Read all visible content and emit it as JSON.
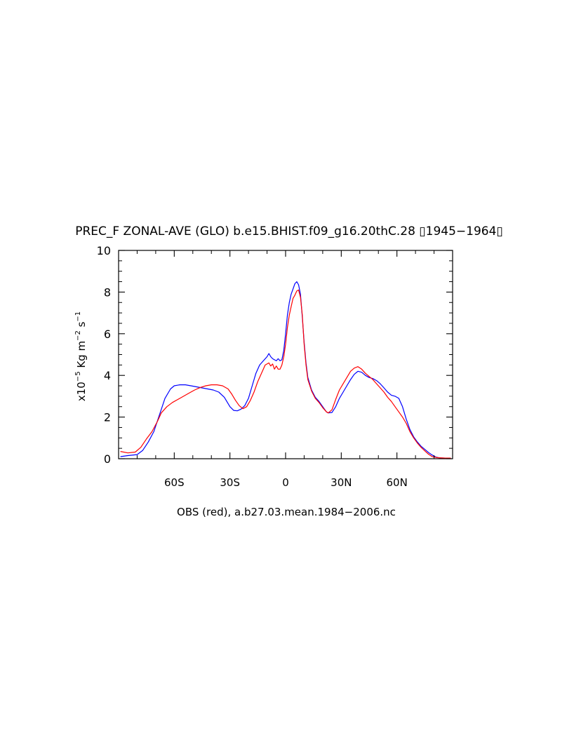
{
  "chart_data": {
    "type": "line",
    "title": "PREC_F ZONAL-AVE (GLO) b.e15.BHIST.f09_g16.20thC.28 ▯1945−1964▯",
    "xlabel": "OBS (red), a.b27.03.mean.1984−2006.nc",
    "ylabel": {
      "prefix": "x10",
      "exp1": "−5",
      "mid": " Kg m",
      "exp2": "−2",
      "mid2": " s",
      "exp3": "−1"
    },
    "xlim": [
      -90,
      90
    ],
    "ylim": [
      0,
      10
    ],
    "x_ticks": [
      {
        "value": -60,
        "label": "60S"
      },
      {
        "value": -30,
        "label": "30S"
      },
      {
        "value": 0,
        "label": "0"
      },
      {
        "value": 30,
        "label": "30N"
      },
      {
        "value": 60,
        "label": "60N"
      }
    ],
    "y_ticks": [
      {
        "value": 0,
        "label": "0"
      },
      {
        "value": 2,
        "label": "2"
      },
      {
        "value": 4,
        "label": "4"
      },
      {
        "value": 6,
        "label": "6"
      },
      {
        "value": 8,
        "label": "8"
      },
      {
        "value": 10,
        "label": "10"
      }
    ],
    "grid": false,
    "series": [
      {
        "color": "#0000ff",
        "points": [
          [
            -89,
            0.1
          ],
          [
            -85,
            0.15
          ],
          [
            -80,
            0.2
          ],
          [
            -77,
            0.4
          ],
          [
            -74,
            0.8
          ],
          [
            -71,
            1.3
          ],
          [
            -68,
            2.1
          ],
          [
            -65,
            2.9
          ],
          [
            -62,
            3.35
          ],
          [
            -60,
            3.5
          ],
          [
            -57,
            3.55
          ],
          [
            -54,
            3.55
          ],
          [
            -51,
            3.5
          ],
          [
            -48,
            3.45
          ],
          [
            -45,
            3.4
          ],
          [
            -42,
            3.35
          ],
          [
            -39,
            3.3
          ],
          [
            -36,
            3.2
          ],
          [
            -33,
            2.95
          ],
          [
            -30,
            2.5
          ],
          [
            -28,
            2.32
          ],
          [
            -26,
            2.3
          ],
          [
            -24,
            2.38
          ],
          [
            -22,
            2.55
          ],
          [
            -20,
            2.9
          ],
          [
            -18,
            3.5
          ],
          [
            -16,
            4.1
          ],
          [
            -14,
            4.5
          ],
          [
            -12,
            4.7
          ],
          [
            -10,
            4.9
          ],
          [
            -9,
            5.05
          ],
          [
            -8,
            4.9
          ],
          [
            -7,
            4.8
          ],
          [
            -6,
            4.75
          ],
          [
            -5,
            4.7
          ],
          [
            -4,
            4.8
          ],
          [
            -3,
            4.7
          ],
          [
            -2,
            4.75
          ],
          [
            -1,
            5.2
          ],
          [
            0,
            6.0
          ],
          [
            1,
            6.9
          ],
          [
            2,
            7.5
          ],
          [
            3,
            7.9
          ],
          [
            4,
            8.15
          ],
          [
            5,
            8.4
          ],
          [
            6,
            8.5
          ],
          [
            7,
            8.35
          ],
          [
            8,
            7.9
          ],
          [
            9,
            6.8
          ],
          [
            10,
            5.6
          ],
          [
            11,
            4.6
          ],
          [
            12,
            3.9
          ],
          [
            14,
            3.3
          ],
          [
            16,
            2.95
          ],
          [
            18,
            2.75
          ],
          [
            20,
            2.5
          ],
          [
            22,
            2.25
          ],
          [
            23,
            2.2
          ],
          [
            25,
            2.22
          ],
          [
            27,
            2.5
          ],
          [
            29,
            2.9
          ],
          [
            31,
            3.2
          ],
          [
            33,
            3.5
          ],
          [
            35,
            3.8
          ],
          [
            37,
            4.05
          ],
          [
            39,
            4.2
          ],
          [
            41,
            4.15
          ],
          [
            43,
            4.0
          ],
          [
            45,
            3.9
          ],
          [
            47,
            3.85
          ],
          [
            49,
            3.75
          ],
          [
            51,
            3.6
          ],
          [
            53,
            3.4
          ],
          [
            55,
            3.2
          ],
          [
            57,
            3.05
          ],
          [
            59,
            3.0
          ],
          [
            61,
            2.9
          ],
          [
            63,
            2.5
          ],
          [
            65,
            1.9
          ],
          [
            67,
            1.4
          ],
          [
            69,
            1.05
          ],
          [
            71,
            0.8
          ],
          [
            73,
            0.6
          ],
          [
            75,
            0.45
          ],
          [
            77,
            0.3
          ],
          [
            79,
            0.18
          ],
          [
            81,
            0.08
          ],
          [
            83,
            0.04
          ],
          [
            86,
            0.03
          ],
          [
            89,
            0.03
          ]
        ]
      },
      {
        "color": "#ff0000",
        "points": [
          [
            -89,
            0.35
          ],
          [
            -85,
            0.28
          ],
          [
            -81,
            0.32
          ],
          [
            -78,
            0.55
          ],
          [
            -75,
            0.95
          ],
          [
            -72,
            1.3
          ],
          [
            -69,
            1.8
          ],
          [
            -67,
            2.2
          ],
          [
            -64,
            2.5
          ],
          [
            -61,
            2.7
          ],
          [
            -58,
            2.85
          ],
          [
            -55,
            3.0
          ],
          [
            -52,
            3.15
          ],
          [
            -49,
            3.3
          ],
          [
            -46,
            3.42
          ],
          [
            -43,
            3.5
          ],
          [
            -40,
            3.55
          ],
          [
            -37,
            3.55
          ],
          [
            -34,
            3.5
          ],
          [
            -31,
            3.35
          ],
          [
            -29,
            3.1
          ],
          [
            -27,
            2.8
          ],
          [
            -25,
            2.55
          ],
          [
            -23,
            2.4
          ],
          [
            -21,
            2.5
          ],
          [
            -19,
            2.8
          ],
          [
            -17,
            3.2
          ],
          [
            -15,
            3.7
          ],
          [
            -13,
            4.1
          ],
          [
            -11,
            4.5
          ],
          [
            -9,
            4.6
          ],
          [
            -8,
            4.45
          ],
          [
            -7,
            4.55
          ],
          [
            -6,
            4.3
          ],
          [
            -5,
            4.45
          ],
          [
            -4,
            4.3
          ],
          [
            -3,
            4.3
          ],
          [
            -2,
            4.5
          ],
          [
            -1,
            4.9
          ],
          [
            0,
            5.5
          ],
          [
            1,
            6.3
          ],
          [
            2,
            6.9
          ],
          [
            3,
            7.3
          ],
          [
            4,
            7.7
          ],
          [
            5,
            7.85
          ],
          [
            6,
            8.05
          ],
          [
            7,
            8.1
          ],
          [
            8,
            7.75
          ],
          [
            9,
            6.9
          ],
          [
            10,
            5.5
          ],
          [
            11,
            4.5
          ],
          [
            12,
            3.8
          ],
          [
            14,
            3.25
          ],
          [
            16,
            2.9
          ],
          [
            18,
            2.7
          ],
          [
            20,
            2.45
          ],
          [
            22,
            2.25
          ],
          [
            23,
            2.2
          ],
          [
            25,
            2.35
          ],
          [
            27,
            2.85
          ],
          [
            29,
            3.3
          ],
          [
            31,
            3.6
          ],
          [
            33,
            3.9
          ],
          [
            35,
            4.2
          ],
          [
            37,
            4.35
          ],
          [
            39,
            4.42
          ],
          [
            41,
            4.3
          ],
          [
            43,
            4.1
          ],
          [
            45,
            3.95
          ],
          [
            47,
            3.8
          ],
          [
            49,
            3.6
          ],
          [
            51,
            3.4
          ],
          [
            53,
            3.2
          ],
          [
            55,
            2.95
          ],
          [
            57,
            2.75
          ],
          [
            59,
            2.5
          ],
          [
            61,
            2.25
          ],
          [
            63,
            2.0
          ],
          [
            65,
            1.7
          ],
          [
            67,
            1.3
          ],
          [
            69,
            1.0
          ],
          [
            71,
            0.75
          ],
          [
            73,
            0.55
          ],
          [
            75,
            0.38
          ],
          [
            77,
            0.22
          ],
          [
            79,
            0.1
          ],
          [
            82,
            0.05
          ],
          [
            86,
            0.03
          ],
          [
            89,
            0.03
          ]
        ]
      }
    ]
  }
}
